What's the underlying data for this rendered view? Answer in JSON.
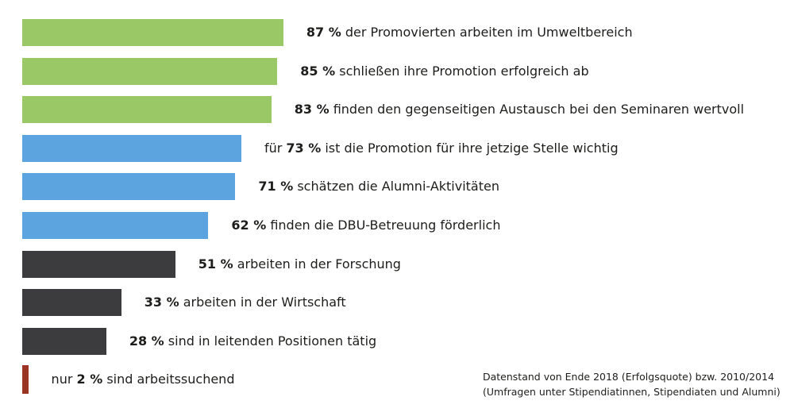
{
  "chart_data": {
    "type": "bar",
    "orientation": "horizontal",
    "unit": "%",
    "xlim": [
      0,
      100
    ],
    "grid": false,
    "categories": [
      {
        "prefix": "",
        "value_label": "87 %",
        "suffix": " der Promovierten arbeiten im Umweltbereich"
      },
      {
        "prefix": "",
        "value_label": "85 %",
        "suffix": " schließen ihre Promotion erfolgreich ab"
      },
      {
        "prefix": "",
        "value_label": "83 %",
        "suffix": " finden den gegenseitigen Austausch bei den Seminaren wertvoll"
      },
      {
        "prefix": "für ",
        "value_label": "73 %",
        "suffix": " ist die Promotion für ihre jetzige Stelle wichtig"
      },
      {
        "prefix": "",
        "value_label": "71 %",
        "suffix": " schätzen die Alumni-Aktivitäten"
      },
      {
        "prefix": "",
        "value_label": "62 %",
        "suffix": " finden die DBU-Betreuung förderlich"
      },
      {
        "prefix": "",
        "value_label": "51 %",
        "suffix": " arbeiten in der Forschung"
      },
      {
        "prefix": "",
        "value_label": "33 %",
        "suffix": " arbeiten in der Wirtschaft"
      },
      {
        "prefix": "",
        "value_label": "28 %",
        "suffix": " sind in leitenden Positionen tätig"
      },
      {
        "prefix": "nur ",
        "value_label": "2 %",
        "suffix": " sind arbeitssuchend"
      }
    ],
    "values": [
      87,
      85,
      83,
      73,
      71,
      62,
      51,
      33,
      28,
      2
    ],
    "colors": [
      "#9bc866",
      "#9bc866",
      "#9bc866",
      "#5ca4df",
      "#5ca4df",
      "#5ca4df",
      "#3c3c3e",
      "#3c3c3e",
      "#3c3c3e",
      "#9a3324"
    ]
  },
  "footnote": {
    "line1": "Datenstand von Ende 2018 (Erfolgsquote) bzw. 2010/2014",
    "line2": "(Umfragen unter Stipendiatinnen, Stipendiaten und Alumni)"
  }
}
